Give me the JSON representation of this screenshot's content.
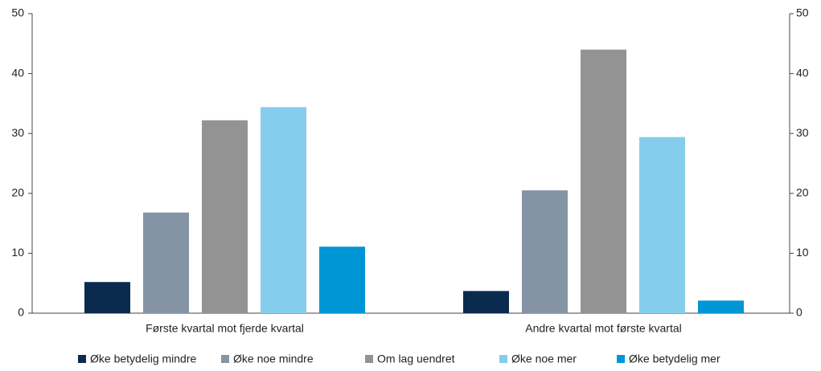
{
  "chart_data": {
    "type": "bar",
    "categories": [
      "Første kvartal mot fjerde kvartal",
      "Andre kvartal mot første kvartal"
    ],
    "series": [
      {
        "name": "Øke betydelig mindre",
        "color": "#0a2b4e",
        "values": [
          5.2,
          3.7
        ]
      },
      {
        "name": "Øke noe mindre",
        "color": "#8494a5",
        "values": [
          16.8,
          20.5
        ]
      },
      {
        "name": "Om lag uendret",
        "color": "#939393",
        "values": [
          32.2,
          44.0
        ]
      },
      {
        "name": "Øke noe mer",
        "color": "#85cdec",
        "values": [
          34.4,
          29.4
        ]
      },
      {
        "name": "Øke betydelig mer",
        "color": "#0096d6",
        "values": [
          11.1,
          2.1
        ]
      }
    ],
    "ylim": [
      0,
      50
    ],
    "yticks": [
      0,
      10,
      20,
      30,
      40,
      50
    ],
    "y2lim": [
      0,
      50
    ],
    "y2ticks": [
      0,
      10,
      20,
      30,
      40,
      50
    ],
    "grid": false,
    "legend": "bottom"
  }
}
